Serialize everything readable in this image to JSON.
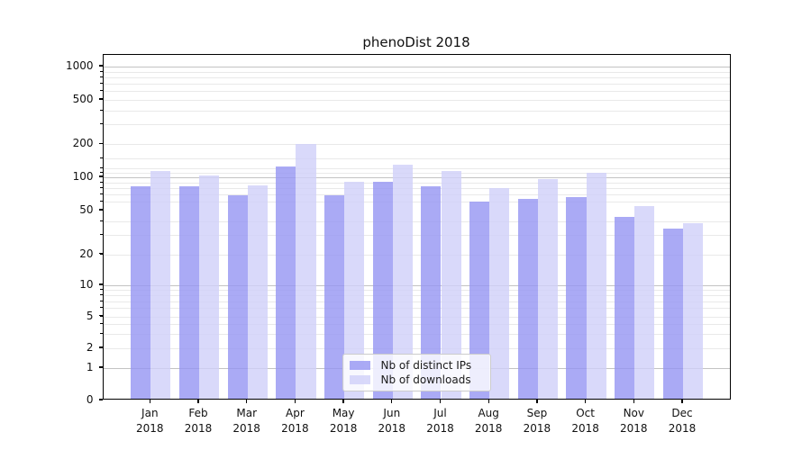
{
  "chart_data": {
    "type": "bar",
    "title": "phenoDist 2018",
    "categories": [
      "Jan",
      "Feb",
      "Mar",
      "Apr",
      "May",
      "Jun",
      "Jul",
      "Aug",
      "Sep",
      "Oct",
      "Nov",
      "Dec"
    ],
    "year_label": "2018",
    "series": [
      {
        "name": "Nb of distinct IPs",
        "color": "rgba(149,149,242,0.8)",
        "values": [
          80,
          80,
          66,
          120,
          66,
          87,
          80,
          58,
          62,
          64,
          42,
          33
        ]
      },
      {
        "name": "Nb of downloads",
        "color": "rgba(208,208,249,0.8)",
        "values": [
          110,
          100,
          82,
          193,
          88,
          125,
          110,
          77,
          93,
          105,
          53,
          37
        ]
      }
    ],
    "y_axis": {
      "scale": "symlog",
      "ticks": [
        0,
        1,
        2,
        5,
        10,
        20,
        50,
        100,
        200,
        500,
        1000
      ],
      "ylim": [
        0,
        1400
      ]
    },
    "x_axis": {
      "tick_labels_line2": "2018"
    },
    "grid": true,
    "legend": {
      "position": "lower center",
      "entries": [
        "Nb of distinct IPs",
        "Nb of downloads"
      ]
    }
  }
}
